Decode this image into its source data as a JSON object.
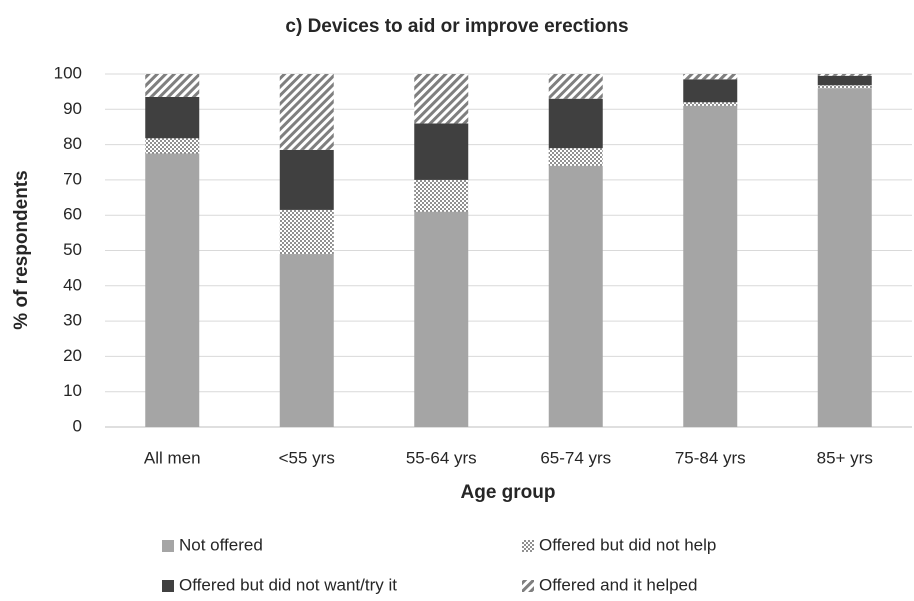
{
  "chart_data": {
    "type": "stacked_bar",
    "title": "c) Devices to aid or improve erections",
    "x_label": "Age group",
    "y_label": "% of respondents",
    "categories": [
      "All men",
      "<55 yrs",
      "55-64 yrs",
      "65-74 yrs",
      "75-84 yrs",
      "85+ yrs"
    ],
    "series": [
      {
        "name": "Not offered",
        "color": "#a5a5a5",
        "pattern": "solid",
        "values": [
          77.5,
          49,
          61,
          74,
          91,
          96
        ]
      },
      {
        "name": "Offered but did not help",
        "color": "#595959",
        "pattern": "dots",
        "values": [
          4.3,
          12.5,
          9,
          5,
          1,
          0.8
        ]
      },
      {
        "name": "Offered but did not want/try it",
        "color": "#404040",
        "pattern": "solid",
        "values": [
          11.7,
          17,
          16,
          14,
          6.5,
          2.7
        ]
      },
      {
        "name": "Offered and it helped",
        "color": "#7f7f7f",
        "pattern": "hatch",
        "values": [
          6.5,
          21.5,
          14,
          7,
          1.5,
          0.5
        ]
      }
    ],
    "ylim": [
      0,
      100
    ],
    "yticks": [
      0,
      10,
      20,
      30,
      40,
      50,
      60,
      70,
      80,
      90,
      100
    ],
    "grid": true,
    "legend": "bottom"
  }
}
